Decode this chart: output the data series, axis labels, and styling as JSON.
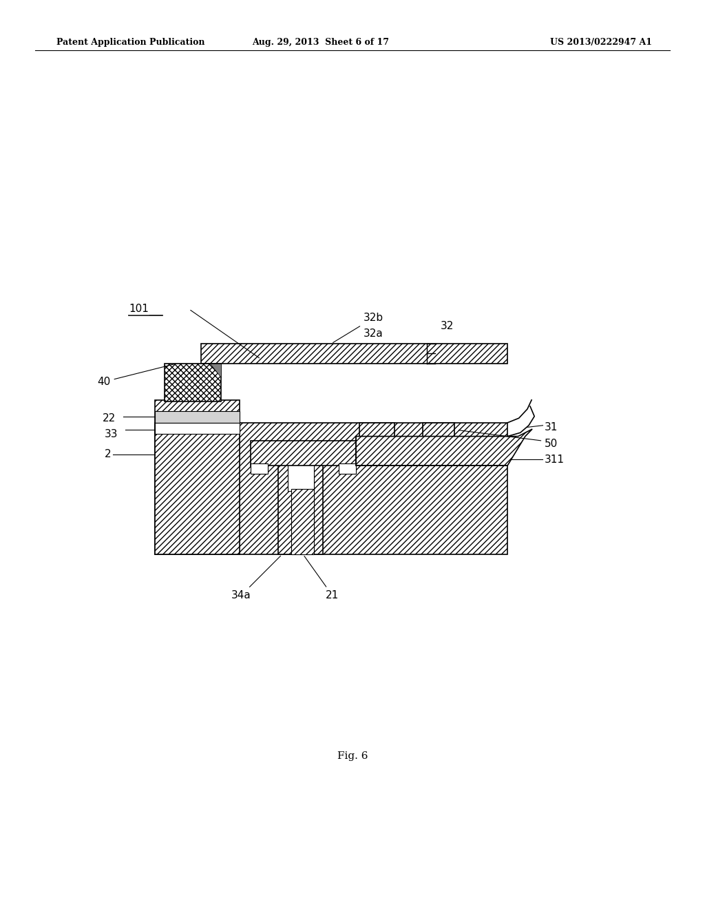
{
  "header_left": "Patent Application Publication",
  "header_mid": "Aug. 29, 2013  Sheet 6 of 17",
  "header_right": "US 2013/0222947 A1",
  "fig_label": "Fig. 6",
  "bg_color": "#ffffff",
  "line_color": "#000000"
}
